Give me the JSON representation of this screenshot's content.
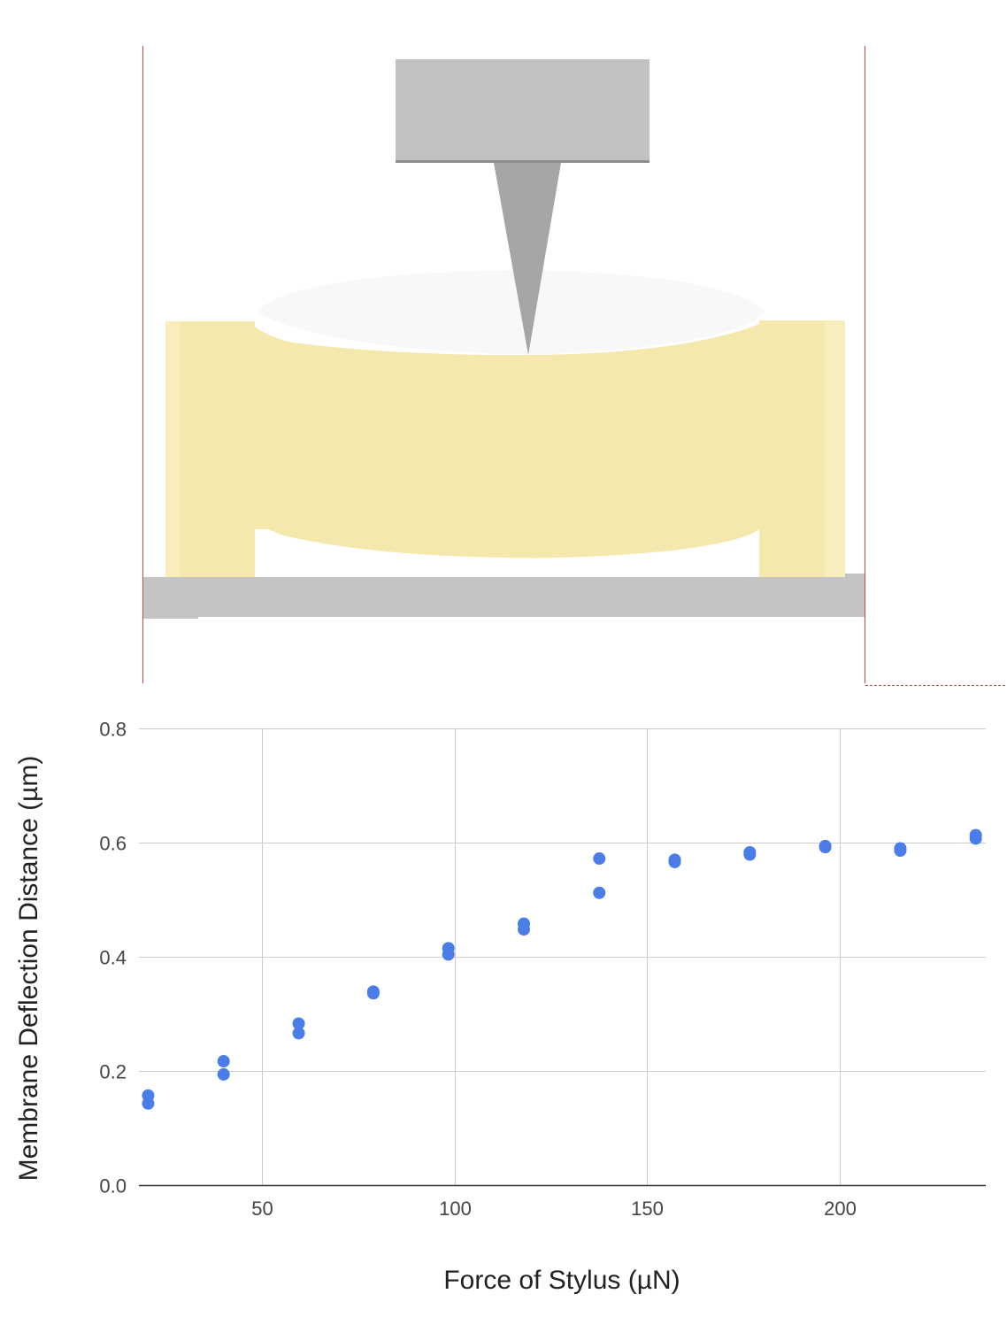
{
  "colors": {
    "frame_line": "#c0504d",
    "stylus_block": "#c2c2c2",
    "stylus_block_edge": "#8f8f8f",
    "stylus_tip": "#a6a6a6",
    "membrane": "#f5e8ac",
    "membrane_side_light": "#f8eebd",
    "membrane_top": "#f8f8f8",
    "base": "#c4c4c4",
    "gridline": "#cccccc",
    "axis": "#333333",
    "point": "#4a7de8"
  },
  "chart_data": {
    "type": "scatter",
    "xlabel": "Force of Stylus (µN)",
    "ylabel": "Membrane Deflection Distance (µm)",
    "xlim": [
      18,
      238
    ],
    "ylim": [
      0.0,
      0.8
    ],
    "x_ticks": [
      50,
      100,
      150,
      200
    ],
    "y_ticks": [
      0.0,
      0.2,
      0.4,
      0.6,
      0.8
    ],
    "x_tick_labels": [
      "50",
      "100",
      "150",
      "200"
    ],
    "y_tick_labels": [
      "0.0",
      "0.2",
      "0.4",
      "0.6",
      "0.8"
    ],
    "grid": true,
    "legend": "none",
    "series": [
      {
        "points": [
          {
            "x": 20.4,
            "y": 0.157
          },
          {
            "x": 20.4,
            "y": 0.143
          },
          {
            "x": 40.0,
            "y": 0.217
          },
          {
            "x": 40.0,
            "y": 0.194
          },
          {
            "x": 59.5,
            "y": 0.283
          },
          {
            "x": 59.5,
            "y": 0.266
          },
          {
            "x": 78.9,
            "y": 0.339
          },
          {
            "x": 78.9,
            "y": 0.336
          },
          {
            "x": 98.4,
            "y": 0.415
          },
          {
            "x": 98.4,
            "y": 0.404
          },
          {
            "x": 118.0,
            "y": 0.458
          },
          {
            "x": 118.0,
            "y": 0.448
          },
          {
            "x": 137.6,
            "y": 0.572
          },
          {
            "x": 137.6,
            "y": 0.512
          },
          {
            "x": 157.2,
            "y": 0.57
          },
          {
            "x": 157.2,
            "y": 0.566
          },
          {
            "x": 176.7,
            "y": 0.583
          },
          {
            "x": 176.7,
            "y": 0.579
          },
          {
            "x": 196.3,
            "y": 0.594
          },
          {
            "x": 196.3,
            "y": 0.592
          },
          {
            "x": 215.8,
            "y": 0.59
          },
          {
            "x": 215.8,
            "y": 0.586
          },
          {
            "x": 235.4,
            "y": 0.613
          },
          {
            "x": 235.4,
            "y": 0.607
          }
        ]
      }
    ]
  }
}
